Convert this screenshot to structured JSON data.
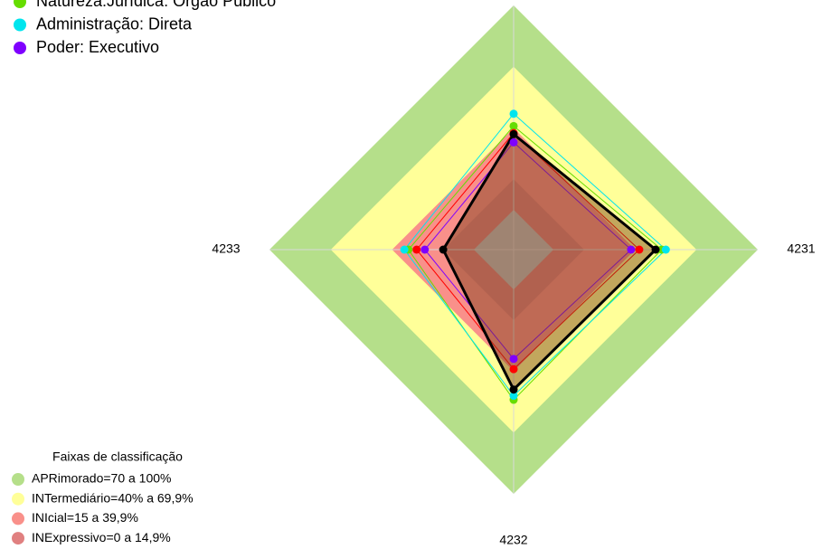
{
  "chart_data": {
    "type": "radar",
    "categories": [
      null,
      "4231",
      "4232",
      "4233"
    ],
    "rlim": [
      0,
      100
    ],
    "series": [
      {
        "name": "Natureza:Jurídica: Órgão Público",
        "color": "#66dd00",
        "values": [
          41,
          53,
          54,
          32
        ]
      },
      {
        "name": "Administração: Direta",
        "color": "#00e5ee",
        "values": [
          47,
          55,
          52,
          34
        ]
      },
      {
        "name": "Poder: Executivo",
        "color": "#7f00ff",
        "values": [
          33,
          38,
          34,
          24
        ]
      },
      {
        "color": "#ff0000",
        "values": [
          37.6,
          42,
          39,
          28
        ]
      },
      {
        "color": "#000000",
        "values": [
          37,
          50,
          49,
          15
        ]
      }
    ],
    "bands_title": "Faixas de classificação",
    "bands": [
      {
        "label": "APRimorado=70 a 100%",
        "min": 70,
        "max": 100,
        "color": "#b5df8a"
      },
      {
        "label": "INTermediário=40% a 69,9%",
        "min": 40,
        "max": 70,
        "color": "#ffff99"
      },
      {
        "label": "INIcial=15 a 39,9%",
        "min": 15,
        "max": 40,
        "color": "#f9908a"
      },
      {
        "label": "INExpressivo=0 a 14,9%",
        "min": 0,
        "max": 15,
        "color": "#e08080"
      }
    ]
  }
}
